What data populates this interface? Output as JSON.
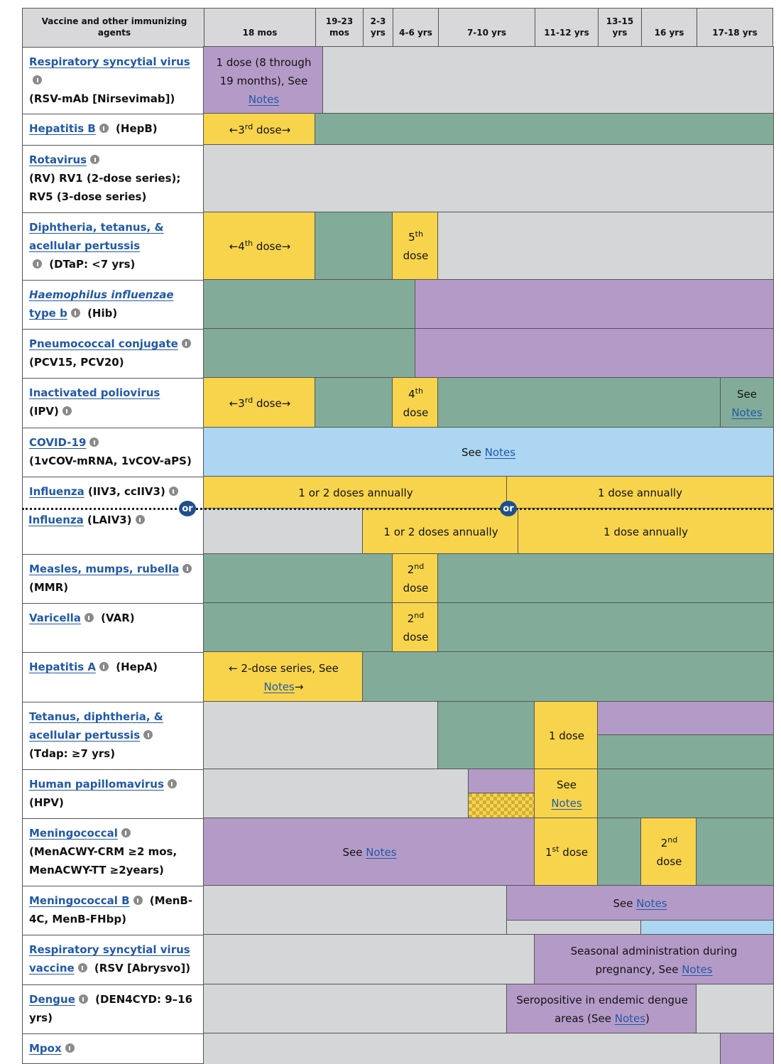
{
  "header": {
    "first": "Vaccine and other immunizing agents",
    "columns": [
      "18 mos",
      "19-23 mos",
      "2-3 yrs",
      "4-6 yrs",
      "7-10 yrs",
      "11-12 yrs",
      "13-15 yrs",
      "16 yrs",
      "17-18 yrs"
    ]
  },
  "rows": [
    {
      "label": {
        "link": "Respiratory syncytial virus",
        "text": "(RSV-mAb [Nirsevimab])"
      },
      "cells": [
        {
          "pre": "1 dose (8 through 19 months), See ",
          "link": "Notes"
        }
      ]
    },
    {
      "label": {
        "link": "Hepatitis B",
        "text": "(HepB)"
      },
      "cells": [
        {
          "pre": "←3",
          "sup": "rd",
          "post": " dose→"
        }
      ]
    },
    {
      "label": {
        "link": "Rotavirus",
        "text": "(RV) RV1 (2-dose series); RV5 (3-dose series)"
      },
      "cells": []
    },
    {
      "label": {
        "link": "Diphtheria, tetanus, & acellular pertussis",
        "text": "(DTaP: <7 yrs)"
      },
      "cells": [
        {
          "pre": "←4",
          "sup": "th",
          "post": " dose→"
        },
        {
          "pre": "5",
          "sup": "th",
          "post": " dose"
        }
      ]
    },
    {
      "label": {
        "link_italic": "Haemophilus influenzae",
        "link": " type b",
        "text": "(Hib)"
      },
      "cells": []
    },
    {
      "label": {
        "link": "Pneumococcal conjugate",
        "text": "(PCV15, PCV20)"
      },
      "cells": []
    },
    {
      "label": {
        "link": "Inactivated poliovirus",
        "text": "(IPV)"
      },
      "cells": [
        {
          "pre": "←3",
          "sup": "rd",
          "post": " dose→"
        },
        {
          "pre": "4",
          "sup": "th",
          "post": " dose"
        },
        {
          "pre": "See ",
          "link": "Notes"
        }
      ]
    },
    {
      "label": {
        "link": "COVID-19",
        "text": "(1vCOV-mRNA, 1vCOV-aPS)"
      },
      "cells": [
        {
          "pre": "See ",
          "link": "Notes"
        }
      ]
    },
    {
      "label": {
        "link": "Influenza",
        "text": "(IIV3, ccIIV3)"
      },
      "label2": {
        "link": "Influenza",
        "text": "(LAIV3)"
      },
      "or": [
        "or",
        "or"
      ],
      "cells": [
        {
          "pre": "1 or 2 doses annually"
        },
        {
          "pre": "1 dose annually"
        },
        {
          "pre": "1 or 2 doses annually"
        },
        {
          "pre": "1 dose annually"
        }
      ]
    },
    {
      "label": {
        "link": "Measles, mumps, rubella",
        "text": "(MMR)"
      },
      "cells": [
        {
          "pre": "2",
          "sup": "nd",
          "post": " dose"
        }
      ]
    },
    {
      "label": {
        "link": "Varicella",
        "text": "(VAR)"
      },
      "cells": [
        {
          "pre": "2",
          "sup": "nd",
          "post": " dose"
        }
      ]
    },
    {
      "label": {
        "link": "Hepatitis A",
        "text": "(HepA)"
      },
      "cells": [
        {
          "pre": "← 2-dose series, See ",
          "link": "Notes",
          "after": "→"
        }
      ]
    },
    {
      "label": {
        "link": "Tetanus, diphtheria, & acellular pertussis",
        "text": "(Tdap: ≥7 yrs)"
      },
      "cells": [
        {
          "pre": "1 dose"
        }
      ]
    },
    {
      "label": {
        "link": "Human papillomavirus",
        "text": "(HPV)"
      },
      "cells": [
        {
          "pre": "See ",
          "link": "Notes"
        }
      ]
    },
    {
      "label": {
        "link": "Meningococcal",
        "text": "(MenACWY-CRM ≥2 mos, MenACWY-TT ≥2years)"
      },
      "cells": [
        {
          "pre": "See ",
          "link": "Notes"
        },
        {
          "pre": "1",
          "sup": "st",
          "post": " dose"
        },
        {
          "pre": "2",
          "sup": "nd",
          "post": " dose"
        }
      ]
    },
    {
      "label": {
        "link": "Meningococcal B",
        "text": "(MenB-4C, MenB-FHbp)"
      },
      "cells": [
        {
          "pre": "See ",
          "link": "Notes"
        }
      ]
    },
    {
      "label": {
        "link": "Respiratory syncytial virus vaccine",
        "text": "(RSV [Abrysvo])"
      },
      "cells": [
        {
          "pre": "Seasonal administration during pregnancy, See ",
          "link": "Notes"
        }
      ]
    },
    {
      "label": {
        "link": "Dengue",
        "text": "(DEN4CYD: 9–16 yrs)"
      },
      "cells": [
        {
          "pre": "Seropositive in endemic dengue areas (See ",
          "link": "Notes",
          "after": ")"
        }
      ]
    },
    {
      "label": {
        "link": "Mpox"
      },
      "cells": []
    }
  ]
}
